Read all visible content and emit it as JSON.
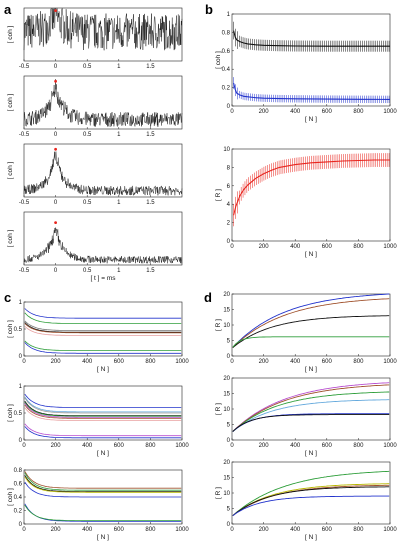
{
  "panel_letters": [
    "a",
    "b",
    "c",
    "d"
  ],
  "axis_text": {
    "coh": "[ coh ]",
    "R": "[ R ]",
    "N": "[ N ]",
    "tms": "[ t ] = ms"
  },
  "chart_data": [
    {
      "id": "a",
      "type": "line",
      "title": "",
      "xlabel": "[ t ] = ms",
      "ylabel": "[ coh ]",
      "xlim": [
        -0.5,
        2.0
      ],
      "xticks": [
        -0.5,
        0,
        0.5,
        1,
        1.5
      ],
      "xticklabels": [
        "-0.5",
        "0",
        "0.5",
        "1",
        "1.5"
      ],
      "subplots": [
        {
          "baseline": 0.55,
          "noise": 0.35,
          "peak": 0.95,
          "marker": {
            "x": 0,
            "y": 0.95
          }
        },
        {
          "baseline": 0.18,
          "noise": 0.14,
          "peak": 0.9,
          "marker": {
            "x": 0,
            "y": 0.9
          }
        },
        {
          "baseline": 0.12,
          "noise": 0.09,
          "peak": 0.9,
          "marker": {
            "x": 0,
            "y": 0.9
          }
        },
        {
          "baseline": 0.1,
          "noise": 0.07,
          "peak": 0.8,
          "marker": {
            "x": 0,
            "y": 0.8
          }
        }
      ],
      "marker_color": "#e8261f"
    },
    {
      "id": "b-top",
      "type": "line",
      "title": "",
      "xlabel": "[ N ]",
      "ylabel": "[ coh ]",
      "xlim": [
        0,
        1000
      ],
      "ylim": [
        0,
        1
      ],
      "xticks": [
        0,
        200,
        400,
        600,
        800,
        1000
      ],
      "yticks": [
        0,
        0.2,
        0.4,
        0.6,
        0.8,
        1
      ],
      "yticklabels": [
        "0",
        "0.2",
        "0.4",
        "0.6",
        "0.8",
        "1"
      ],
      "series": [
        {
          "color": "#111111",
          "x": [
            10,
            20,
            30,
            50,
            75,
            100,
            150,
            200,
            300,
            400,
            600,
            800,
            1000
          ],
          "y": [
            0.82,
            0.75,
            0.72,
            0.7,
            0.685,
            0.675,
            0.665,
            0.66,
            0.655,
            0.652,
            0.65,
            0.65,
            0.65
          ],
          "err": 0.06
        },
        {
          "color": "#2233cc",
          "x": [
            10,
            20,
            30,
            50,
            75,
            100,
            150,
            200,
            300,
            400,
            600,
            800,
            1000
          ],
          "y": [
            0.25,
            0.18,
            0.14,
            0.12,
            0.105,
            0.1,
            0.09,
            0.085,
            0.08,
            0.078,
            0.075,
            0.073,
            0.072
          ],
          "err": 0.04
        }
      ]
    },
    {
      "id": "b-bottom",
      "type": "line",
      "title": "",
      "xlabel": "[ N ]",
      "ylabel": "[ R ]",
      "xlim": [
        0,
        1000
      ],
      "ylim": [
        0,
        10
      ],
      "xticks": [
        0,
        200,
        400,
        600,
        800,
        1000
      ],
      "yticks": [
        0,
        2,
        4,
        6,
        8,
        10
      ],
      "series": [
        {
          "color": "#e8261f",
          "x": [
            10,
            25,
            50,
            75,
            100,
            150,
            200,
            250,
            300,
            400,
            500,
            600,
            700,
            800,
            900,
            1000
          ],
          "y": [
            2.8,
            3.8,
            4.9,
            5.6,
            6.1,
            6.8,
            7.3,
            7.7,
            8.0,
            8.3,
            8.5,
            8.6,
            8.7,
            8.75,
            8.8,
            8.8
          ],
          "err": 0.75
        }
      ]
    },
    {
      "id": "c",
      "type": "line",
      "title": "",
      "xlabel": "[ N ]",
      "ylabel": "[ coh ]",
      "xlim": [
        0,
        1000
      ],
      "ylim": [
        0,
        1
      ],
      "xticks": [
        0,
        200,
        400,
        600,
        800,
        1000
      ],
      "yticks": [
        0,
        0.5,
        1
      ],
      "yticklabels": [
        "0",
        "0.5",
        "1"
      ],
      "subplots": [
        {
          "series": [
            {
              "color": "#2233cc",
              "y0": 0.88,
              "yinf": 0.7
            },
            {
              "color": "#2e9e3a",
              "y0": 0.8,
              "yinf": 0.6
            },
            {
              "color": "#777777",
              "y0": 0.65,
              "yinf": 0.47
            },
            {
              "color": "#111111",
              "y0": 0.62,
              "yinf": 0.44
            },
            {
              "color": "#a0522d",
              "y0": 0.6,
              "yinf": 0.43
            },
            {
              "color": "#e8a0a0",
              "y0": 0.55,
              "yinf": 0.38
            },
            {
              "color": "#2e9e3a",
              "y0": 0.28,
              "yinf": 0.1
            },
            {
              "color": "#2233cc",
              "y0": 0.25,
              "yinf": 0.05
            }
          ]
        },
        {
          "series": [
            {
              "color": "#2233cc",
              "y0": 0.85,
              "yinf": 0.6
            },
            {
              "color": "#66aadd",
              "y0": 0.8,
              "yinf": 0.52
            },
            {
              "color": "#9a9a9a",
              "y0": 0.78,
              "yinf": 0.5
            },
            {
              "color": "#111111",
              "y0": 0.72,
              "yinf": 0.45
            },
            {
              "color": "#2e9e3a",
              "y0": 0.7,
              "yinf": 0.44
            },
            {
              "color": "#b84fd0",
              "y0": 0.68,
              "yinf": 0.42
            },
            {
              "color": "#a0522d",
              "y0": 0.65,
              "yinf": 0.4
            },
            {
              "color": "#e8a0a0",
              "y0": 0.6,
              "yinf": 0.36
            },
            {
              "color": "#b84fd0",
              "y0": 0.3,
              "yinf": 0.08
            },
            {
              "color": "#2233cc",
              "y0": 0.25,
              "yinf": 0.04
            }
          ]
        },
        {
          "series": [
            {
              "color": "#a0522d",
              "y0": 0.78,
              "yinf": 0.53
            },
            {
              "color": "#2e9e3a",
              "y0": 0.76,
              "yinf": 0.5
            },
            {
              "color": "#111111",
              "y0": 0.72,
              "yinf": 0.48
            },
            {
              "color": "#b8b800",
              "y0": 0.7,
              "yinf": 0.47
            },
            {
              "color": "#2233cc",
              "y0": 0.62,
              "yinf": 0.4
            },
            {
              "color": "#2233cc",
              "y0": 0.3,
              "yinf": 0.04
            },
            {
              "color": "#2e9e3a",
              "y0": 0.28,
              "yinf": 0.05
            }
          ],
          "ylim": [
            0,
            0.8
          ],
          "yticks": [
            0,
            0.2,
            0.4,
            0.6,
            0.8
          ],
          "yticklabels": [
            "0",
            "0.2",
            "0.4",
            "0.6",
            "0.8"
          ]
        }
      ]
    },
    {
      "id": "d",
      "type": "line",
      "title": "",
      "xlabel": "[ N ]",
      "ylabel": "[ R ]",
      "xlim": [
        0,
        1000
      ],
      "ylim": [
        0,
        20
      ],
      "xticks": [
        0,
        200,
        400,
        600,
        800,
        1000
      ],
      "yticks": [
        0,
        5,
        10,
        15,
        20
      ],
      "subplots": [
        {
          "series": [
            {
              "color": "#2233cc",
              "yend": 20,
              "k": 0.003
            },
            {
              "color": "#a0522d",
              "yend": 18.5,
              "k": 0.003
            },
            {
              "color": "#111111",
              "yend": 13,
              "k": 0.004
            },
            {
              "color": "#2e9e3a",
              "yend": 6.2,
              "k": 0.02
            }
          ]
        },
        {
          "series": [
            {
              "color": "#b84fd0",
              "yend": 18.5,
              "k": 0.003
            },
            {
              "color": "#a0522d",
              "yend": 17.8,
              "k": 0.003
            },
            {
              "color": "#2e9e3a",
              "yend": 15.5,
              "k": 0.0035
            },
            {
              "color": "#66aadd",
              "yend": 13,
              "k": 0.004
            },
            {
              "color": "#2233cc",
              "yend": 8.5,
              "k": 0.008
            },
            {
              "color": "#111111",
              "yend": 8.2,
              "k": 0.009
            }
          ]
        },
        {
          "series": [
            {
              "color": "#2e9e3a",
              "yend": 17,
              "k": 0.003
            },
            {
              "color": "#b8b800",
              "yend": 13,
              "k": 0.004
            },
            {
              "color": "#a0522d",
              "yend": 12.5,
              "k": 0.004
            },
            {
              "color": "#111111",
              "yend": 12,
              "k": 0.0045
            },
            {
              "color": "#2233cc",
              "yend": 9,
              "k": 0.006
            }
          ]
        }
      ]
    }
  ]
}
